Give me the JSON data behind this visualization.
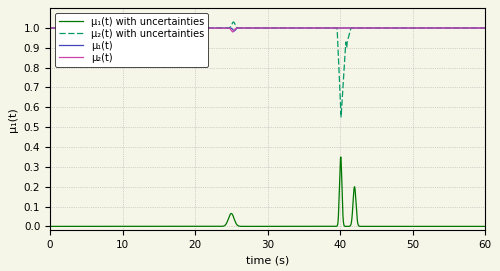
{
  "xlabel": "time (s)",
  "ylabel": "μ₁(t)",
  "xlim": [
    0,
    60
  ],
  "ylim": [
    -0.02,
    1.1
  ],
  "yticks": [
    0,
    0.1,
    0.2,
    0.3,
    0.4,
    0.5,
    0.6,
    0.7,
    0.8,
    0.9,
    1.0
  ],
  "xticks": [
    0,
    10,
    20,
    30,
    40,
    50,
    60
  ],
  "color_mu1": "#4444bb",
  "color_mu2": "#cc44aa",
  "color_mu1_unc": "#007700",
  "color_mu2_unc": "#009966",
  "legend_labels": [
    "μ₁(t)",
    "μ₂(t)",
    "μ₁(t) with uncertainties",
    "μ₂(t) with uncertainties"
  ],
  "figsize": [
    5.0,
    2.71
  ],
  "dpi": 100,
  "bg_color": "#f5f5e8",
  "grid_color": "#aaaaaa"
}
